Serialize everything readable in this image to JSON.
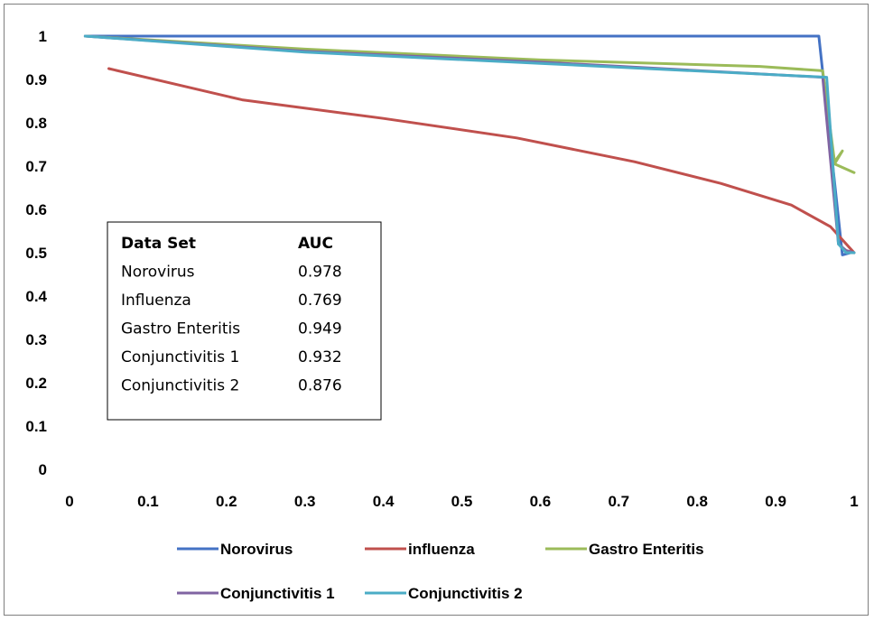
{
  "chart_data": {
    "type": "line",
    "title": "",
    "xlabel": "",
    "ylabel": "",
    "xlim": [
      0,
      1
    ],
    "ylim": [
      0,
      1
    ],
    "x_ticks": [
      "0",
      "0.1",
      "0.2",
      "0.3",
      "0.4",
      "0.5",
      "0.6",
      "0.7",
      "0.8",
      "0.9",
      "1"
    ],
    "y_ticks": [
      "0",
      "0.1",
      "0.2",
      "0.3",
      "0.4",
      "0.5",
      "0.6",
      "0.7",
      "0.8",
      "0.9",
      "1"
    ],
    "grid": false,
    "legend_position": "bottom",
    "series": [
      {
        "name": "Norovirus",
        "color": "#4472c4",
        "points": [
          [
            0.02,
            1.0
          ],
          [
            0.955,
            1.0
          ],
          [
            0.985,
            0.495
          ],
          [
            0.995,
            0.5
          ]
        ]
      },
      {
        "name": "influenza",
        "color": "#c0504d",
        "points": [
          [
            0.05,
            0.925
          ],
          [
            0.22,
            0.853
          ],
          [
            0.4,
            0.81
          ],
          [
            0.57,
            0.765
          ],
          [
            0.72,
            0.71
          ],
          [
            0.83,
            0.66
          ],
          [
            0.92,
            0.61
          ],
          [
            0.97,
            0.56
          ],
          [
            1.0,
            0.5
          ]
        ]
      },
      {
        "name": "Gastro Enteritis",
        "color": "#9bbb59",
        "points": [
          [
            0.02,
            1.0
          ],
          [
            0.3,
            0.97
          ],
          [
            0.6,
            0.945
          ],
          [
            0.88,
            0.93
          ],
          [
            0.96,
            0.92
          ],
          [
            0.975,
            0.71
          ],
          [
            0.985,
            0.735
          ],
          [
            0.975,
            0.705
          ],
          [
            1.0,
            0.685
          ]
        ]
      },
      {
        "name": "Conjunctivitis 1",
        "color": "#8064a2",
        "points": [
          [
            0.02,
            1.0
          ],
          [
            0.3,
            0.965
          ],
          [
            0.6,
            0.94
          ],
          [
            0.96,
            0.905
          ],
          [
            0.98,
            0.52
          ],
          [
            0.99,
            0.505
          ],
          [
            1.0,
            0.5
          ]
        ]
      },
      {
        "name": "Conjunctivitis 2",
        "color": "#4bacc6",
        "points": [
          [
            0.02,
            1.0
          ],
          [
            0.3,
            0.963
          ],
          [
            0.6,
            0.937
          ],
          [
            0.965,
            0.905
          ],
          [
            0.98,
            0.52
          ],
          [
            0.99,
            0.5
          ],
          [
            1.0,
            0.5
          ]
        ]
      }
    ],
    "auc_table": {
      "header": [
        "Data Set",
        "AUC"
      ],
      "rows": [
        [
          "Norovirus",
          "0.978"
        ],
        [
          "Influenza",
          "0.769"
        ],
        [
          "Gastro Enteritis",
          "0.949"
        ],
        [
          "Conjunctivitis 1",
          "0.932"
        ],
        [
          "Conjunctivitis 2",
          "0.876"
        ]
      ]
    }
  }
}
